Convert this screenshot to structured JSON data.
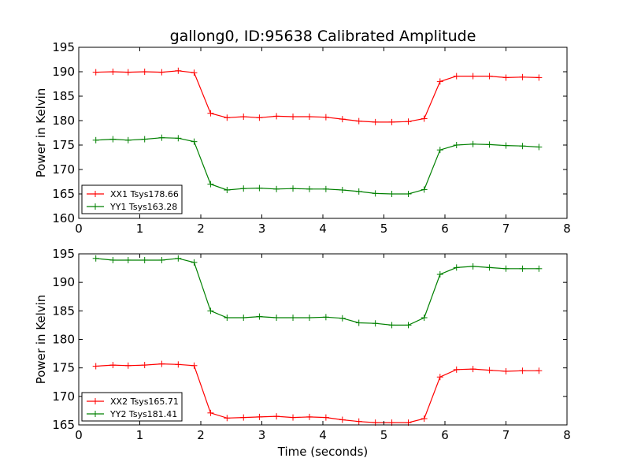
{
  "figure": {
    "title": "gallong0, ID:95638 Calibrated Amplitude",
    "xlabel": "Time (seconds)"
  },
  "chart_data": [
    {
      "type": "line",
      "ylabel": "Power in Kelvin",
      "xlim": [
        0,
        8
      ],
      "ylim": [
        160,
        195
      ],
      "xticks": [
        0,
        1,
        2,
        3,
        4,
        5,
        6,
        7,
        8
      ],
      "yticks": [
        160,
        165,
        170,
        175,
        180,
        185,
        190,
        195
      ],
      "legend_position": "lower-left",
      "grid": false,
      "x": [
        0.28,
        0.56,
        0.81,
        1.08,
        1.36,
        1.63,
        1.89,
        2.16,
        2.43,
        2.7,
        2.96,
        3.24,
        3.51,
        3.78,
        4.05,
        4.32,
        4.59,
        4.86,
        5.13,
        5.4,
        5.66,
        5.92,
        6.19,
        6.46,
        6.73,
        7.0,
        7.27,
        7.54
      ],
      "series": [
        {
          "name": "XX1 Tsys178.66",
          "color": "#ff0000",
          "values": [
            189.9,
            190.0,
            189.9,
            190.0,
            189.9,
            190.2,
            189.8,
            181.5,
            180.6,
            180.8,
            180.6,
            180.9,
            180.8,
            180.8,
            180.7,
            180.3,
            179.9,
            179.7,
            179.7,
            179.8,
            180.4,
            188.0,
            189.1,
            189.1,
            189.1,
            188.8,
            188.9,
            188.8
          ]
        },
        {
          "name": "YY1 Tsys163.28",
          "color": "#008000",
          "values": [
            176.0,
            176.2,
            176.0,
            176.2,
            176.5,
            176.4,
            175.7,
            167.0,
            165.8,
            166.1,
            166.2,
            166.0,
            166.1,
            166.0,
            166.0,
            165.8,
            165.5,
            165.1,
            165.0,
            165.0,
            165.9,
            174.0,
            175.0,
            175.2,
            175.1,
            174.9,
            174.8,
            174.6
          ]
        }
      ]
    },
    {
      "type": "line",
      "ylabel": "Power in Kelvin",
      "xlim": [
        0,
        8
      ],
      "ylim": [
        165,
        195
      ],
      "xticks": [
        0,
        1,
        2,
        3,
        4,
        5,
        6,
        7,
        8
      ],
      "yticks": [
        165,
        170,
        175,
        180,
        185,
        190,
        195
      ],
      "legend_position": "lower-left",
      "grid": false,
      "x": [
        0.28,
        0.56,
        0.81,
        1.08,
        1.36,
        1.63,
        1.89,
        2.16,
        2.43,
        2.7,
        2.96,
        3.24,
        3.51,
        3.78,
        4.05,
        4.32,
        4.59,
        4.86,
        5.13,
        5.4,
        5.66,
        5.92,
        6.19,
        6.46,
        6.73,
        7.0,
        7.27,
        7.54
      ],
      "series": [
        {
          "name": "XX2 Tsys165.71",
          "color": "#ff0000",
          "values": [
            175.3,
            175.5,
            175.4,
            175.5,
            175.7,
            175.6,
            175.4,
            167.1,
            166.2,
            166.3,
            166.4,
            166.5,
            166.3,
            166.4,
            166.3,
            165.9,
            165.6,
            165.4,
            165.4,
            165.4,
            166.1,
            173.4,
            174.7,
            174.8,
            174.6,
            174.4,
            174.5,
            174.5
          ]
        },
        {
          "name": "YY2 Tsys181.41",
          "color": "#008000",
          "values": [
            194.2,
            193.9,
            193.9,
            193.9,
            193.9,
            194.2,
            193.5,
            185.0,
            183.8,
            183.8,
            184.0,
            183.8,
            183.8,
            183.8,
            183.9,
            183.7,
            182.9,
            182.8,
            182.5,
            182.5,
            183.8,
            191.4,
            192.6,
            192.8,
            192.6,
            192.4,
            192.4,
            192.4
          ]
        }
      ]
    }
  ]
}
